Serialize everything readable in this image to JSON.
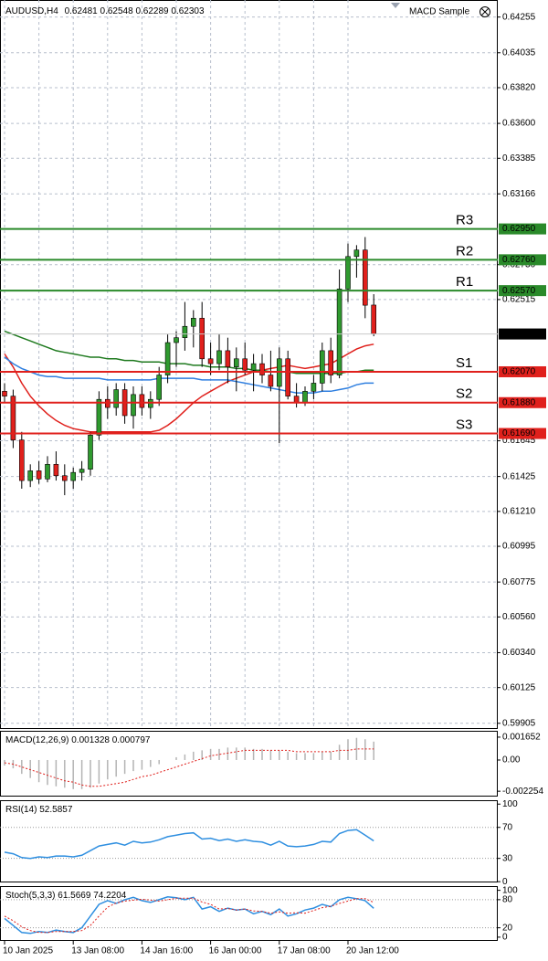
{
  "chart_data": [
    {
      "type": "candlestick",
      "title": "AUDUSD,H4",
      "expert": "MACD Sample",
      "categories": [
        "10 Jan 2025",
        null,
        null,
        null,
        null,
        null,
        null,
        null,
        "13 Jan 08:00",
        null,
        null,
        null,
        null,
        null,
        null,
        null,
        "14 Jan 16:00",
        null,
        null,
        null,
        null,
        null,
        null,
        null,
        "16 Jan 00:00",
        null,
        null,
        null,
        null,
        null,
        null,
        null,
        "17 Jan 08:00",
        null,
        null,
        null,
        null,
        null,
        null,
        null,
        "20 Jan 12:00",
        null,
        null,
        null
      ],
      "open": [
        0.6195,
        0.6192,
        0.6165,
        0.614,
        0.6146,
        0.6141,
        0.615,
        0.6143,
        0.614,
        0.6145,
        0.6147,
        0.6168,
        0.619,
        0.6185,
        0.6196,
        0.618,
        0.6193,
        0.6185,
        0.619,
        0.6205,
        0.6225,
        0.6228,
        0.6235,
        0.624,
        0.6215,
        0.6212,
        0.622,
        0.621,
        0.6215,
        0.6208,
        0.6212,
        0.6205,
        0.6198,
        0.6215,
        0.6192,
        0.6188,
        0.6195,
        0.62,
        0.622,
        0.6205,
        0.6258,
        0.6278,
        0.6282,
        0.62481
      ],
      "high": [
        0.62,
        0.6196,
        0.617,
        0.615,
        0.6152,
        0.6155,
        0.6158,
        0.615,
        0.6148,
        0.6152,
        0.617,
        0.6195,
        0.6198,
        0.62,
        0.62,
        0.6198,
        0.6198,
        0.6195,
        0.621,
        0.623,
        0.6232,
        0.625,
        0.6245,
        0.625,
        0.6225,
        0.623,
        0.6228,
        0.6222,
        0.6225,
        0.6218,
        0.6218,
        0.622,
        0.6222,
        0.622,
        0.62,
        0.6198,
        0.6205,
        0.6225,
        0.6228,
        0.627,
        0.6286,
        0.6285,
        0.629,
        0.62548
      ],
      "low": [
        0.6188,
        0.616,
        0.6135,
        0.6136,
        0.6138,
        0.6139,
        0.614,
        0.6131,
        0.6135,
        0.614,
        0.6143,
        0.6165,
        0.6178,
        0.618,
        0.6175,
        0.6172,
        0.618,
        0.6178,
        0.6186,
        0.62,
        0.621,
        0.622,
        0.6222,
        0.621,
        0.6205,
        0.6208,
        0.62,
        0.6195,
        0.6205,
        0.6195,
        0.62,
        0.6195,
        0.6163,
        0.619,
        0.6185,
        0.6186,
        0.619,
        0.6195,
        0.62,
        0.6203,
        0.625,
        0.6265,
        0.624,
        0.62289
      ],
      "close": [
        0.6192,
        0.6165,
        0.614,
        0.6146,
        0.6141,
        0.615,
        0.6143,
        0.614,
        0.6145,
        0.6147,
        0.6168,
        0.619,
        0.6185,
        0.6196,
        0.618,
        0.6193,
        0.6185,
        0.619,
        0.6205,
        0.6225,
        0.6228,
        0.6235,
        0.624,
        0.6215,
        0.6212,
        0.622,
        0.621,
        0.6215,
        0.6208,
        0.6212,
        0.6205,
        0.6198,
        0.6215,
        0.6192,
        0.6188,
        0.6195,
        0.62,
        0.622,
        0.6205,
        0.6258,
        0.6278,
        0.6282,
        0.6248,
        0.62303
      ],
      "up_color": "#2f9a2f",
      "down_color": "#e0201c",
      "series": [
        {
          "color": "#e0201c",
          "values": [
            0.6218,
            0.621,
            0.62,
            0.6192,
            0.6186,
            0.6181,
            0.6177,
            0.6174,
            0.6172,
            0.6171,
            0.617,
            0.617,
            0.617,
            0.617,
            0.617,
            0.617,
            0.617,
            0.617,
            0.6171,
            0.6174,
            0.6178,
            0.6183,
            0.6188,
            0.6192,
            0.6195,
            0.6198,
            0.6201,
            0.6203,
            0.6205,
            0.6207,
            0.6208,
            0.6209,
            0.621,
            0.6211,
            0.621,
            0.6209,
            0.621,
            0.6211,
            0.6212,
            0.6215,
            0.6218,
            0.6221,
            0.6223,
            0.6224
          ]
        },
        {
          "color": "#2f7fe0",
          "values": [
            0.6216,
            0.6212,
            0.6209,
            0.6207,
            0.6205,
            0.6204,
            0.6204,
            0.6203,
            0.6203,
            0.6203,
            0.6203,
            0.6203,
            0.6202,
            0.6202,
            0.6202,
            0.6202,
            0.6202,
            0.6202,
            0.6203,
            0.6203,
            0.6203,
            0.6203,
            0.6203,
            0.6202,
            0.6202,
            0.6202,
            0.6202,
            0.6201,
            0.62,
            0.6199,
            0.6198,
            0.6197,
            0.6196,
            0.6195,
            0.6194,
            0.6194,
            0.6194,
            0.6195,
            0.6195,
            0.6196,
            0.6197,
            0.6199,
            0.62,
            0.62
          ]
        },
        {
          "color": "#1f7a1f",
          "values": [
            0.6232,
            0.623,
            0.6228,
            0.6226,
            0.6224,
            0.6222,
            0.622,
            0.6219,
            0.6218,
            0.6217,
            0.6216,
            0.6216,
            0.6215,
            0.6215,
            0.6214,
            0.6214,
            0.6213,
            0.6213,
            0.6213,
            0.6212,
            0.6212,
            0.6212,
            0.6211,
            0.6211,
            0.621,
            0.621,
            0.621,
            0.6209,
            0.6209,
            0.6208,
            0.6208,
            0.6207,
            0.6207,
            0.6207,
            0.6206,
            0.6206,
            0.6206,
            0.6206,
            0.6206,
            0.6206,
            0.6207,
            0.6207,
            0.6208,
            0.6208
          ]
        }
      ],
      "levels": [
        {
          "name": "R3",
          "color": "#2a8a2a",
          "price": {
            "value": 0.6295,
            "label": "0.62950"
          }
        },
        {
          "name": "R2",
          "color": "#2a8a2a",
          "price": {
            "value": 0.6276,
            "label": "0.62760"
          }
        },
        {
          "name": "R1",
          "color": "#2a8a2a",
          "price": {
            "value": 0.6257,
            "label": "0.62570"
          }
        },
        {
          "name": "S1",
          "color": "#e0201c",
          "price": {
            "value": 0.6207,
            "label": "0.62070"
          }
        },
        {
          "name": "S2",
          "color": "#e0201c",
          "price": {
            "value": 0.6188,
            "label": "0.61880"
          }
        },
        {
          "name": "S3",
          "color": "#e0201c",
          "price": {
            "value": 0.6169,
            "label": "0.61690"
          }
        }
      ],
      "ylim": [
        0.5987,
        0.6436
      ],
      "yticks": [
        0.64255,
        0.64035,
        {
          "value": 0.6382,
          "label": "0.63820"
        },
        {
          "value": 0.636,
          "label": "0.63600"
        },
        0.63385,
        0.63166,
        {
          "value": 0.6273,
          "label": "0.62730"
        },
        0.62515,
        0.61645,
        0.61425,
        {
          "value": 0.6121,
          "label": "0.61210"
        },
        0.60995,
        0.60775,
        {
          "value": 0.6056,
          "label": "0.60560"
        },
        {
          "value": 0.6034,
          "label": "0.60340"
        },
        0.60125,
        0.59905
      ],
      "grid": true
    },
    {
      "type": "macd",
      "title": "MACD(12,26,9)",
      "series": [
        {
          "color": "#b4b4b4",
          "values": [
            -0.0004,
            -0.0006,
            -0.001,
            -0.0013,
            -0.0016,
            -0.0018,
            -0.0019,
            -0.002,
            -0.0021,
            -0.0021,
            -0.002,
            -0.0017,
            -0.0014,
            -0.0012,
            -0.001,
            -0.0008,
            -0.0007,
            -0.0005,
            -0.0003,
            0,
            0.0002,
            0.0004,
            0.0006,
            0.0007,
            0.0008,
            0.0008,
            0.0009,
            0.0009,
            0.0009,
            0.0008,
            0.0008,
            0.0007,
            0.0007,
            0.0006,
            0.0005,
            0.0005,
            0.0005,
            0.0006,
            0.0006,
            0.0011,
            0.0015,
            0.0016,
            0.0015,
            0.001328
          ]
        },
        {
          "color": "#e0201c",
          "values": [
            -0.0002,
            -0.0003,
            -0.0005,
            -0.0007,
            -0.0009,
            -0.0011,
            -0.0013,
            -0.0015,
            -0.0016,
            -0.0018,
            -0.0019,
            -0.0019,
            -0.0018,
            -0.0017,
            -0.0016,
            -0.0014,
            -0.0012,
            -0.0011,
            -0.0009,
            -0.0007,
            -0.0005,
            -0.0003,
            -0.0001,
            0.0001,
            0.0003,
            0.0004,
            0.0005,
            0.0006,
            0.0007,
            0.0007,
            0.0007,
            0.0007,
            0.0007,
            0.0007,
            0.0006,
            0.0006,
            0.0006,
            0.0006,
            0.0006,
            0.0007,
            0.0007,
            0.0008,
            0.0008,
            0.000797
          ]
        }
      ],
      "ylim": [
        -0.00264,
        0.00211
      ],
      "yticks": [
        0.001652,
        {
          "value": 0,
          "label": "0.00"
        },
        -0.002254
      ]
    },
    {
      "type": "oscillator",
      "title": "RSI(14)",
      "series": [
        {
          "color": "#2f8fe0",
          "values": [
            38,
            36,
            31,
            30,
            32,
            31,
            33,
            33,
            32,
            34,
            40,
            46,
            48,
            50,
            47,
            52,
            50,
            51,
            54,
            58,
            60,
            62,
            63,
            55,
            56,
            53,
            55,
            52,
            54,
            52,
            51,
            47,
            52,
            46,
            45,
            46,
            48,
            52,
            51,
            62,
            66,
            67,
            60,
            52.5857
          ]
        }
      ],
      "levels": [
        70,
        30
      ],
      "ylim": [
        -1,
        105
      ],
      "yticks": [
        100,
        70,
        30,
        0
      ]
    },
    {
      "type": "oscillator",
      "title": "Stoch(5,3,3)",
      "series": [
        {
          "color": "#2f8fe0",
          "values": [
            40,
            25,
            10,
            8,
            12,
            10,
            15,
            12,
            10,
            20,
            45,
            70,
            78,
            72,
            80,
            85,
            78,
            74,
            80,
            86,
            84,
            80,
            85,
            60,
            65,
            55,
            62,
            58,
            60,
            50,
            55,
            48,
            60,
            45,
            50,
            58,
            62,
            70,
            65,
            80,
            85,
            82,
            78,
            61.5669
          ]
        },
        {
          "color": "#e0201c",
          "dashed": true,
          "values": [
            45,
            35,
            22,
            14,
            10,
            10,
            12,
            12,
            12,
            14,
            25,
            45,
            64,
            73,
            77,
            79,
            81,
            79,
            77,
            80,
            83,
            83,
            83,
            75,
            70,
            60,
            61,
            58,
            60,
            56,
            55,
            51,
            54,
            51,
            52,
            51,
            57,
            63,
            66,
            72,
            77,
            82,
            82,
            74.2204
          ]
        }
      ],
      "levels": [
        80,
        20
      ],
      "ylim": [
        -8,
        109
      ],
      "yticks": [
        100,
        80,
        20,
        0
      ]
    }
  ]
}
